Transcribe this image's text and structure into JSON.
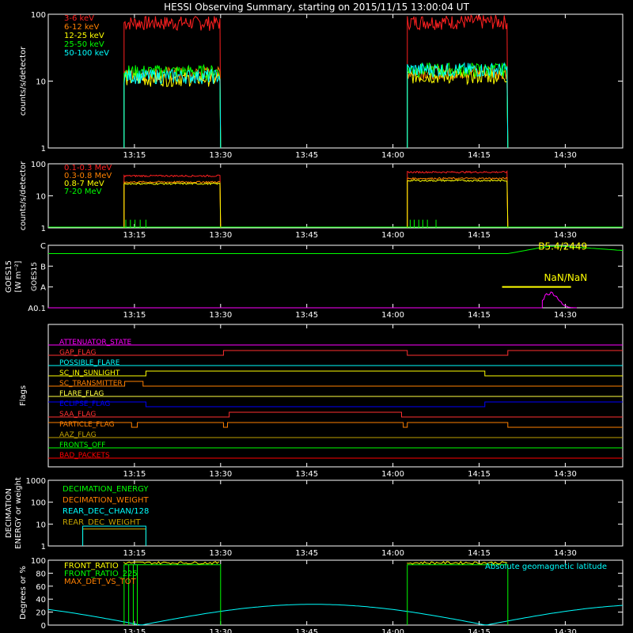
{
  "chart_data": {
    "title": "HESSI Observing Summary, starting on 2015/11/15 13:00:04 UT",
    "type": "line",
    "time_axis": {
      "ticks": [
        {
          "t": 15,
          "label": "13:15"
        },
        {
          "t": 30,
          "label": "13:30"
        },
        {
          "t": 45,
          "label": "13:45"
        },
        {
          "t": 60,
          "label": "14:00"
        },
        {
          "t": 75,
          "label": "14:15"
        },
        {
          "t": 90,
          "label": "14:30"
        }
      ],
      "range_minutes_after_start": [
        0,
        100
      ]
    },
    "panels": [
      {
        "id": "lo",
        "type": "line",
        "ylabel": "counts/s/detector",
        "yscale": "log",
        "ylim": [
          1,
          100
        ],
        "yticks": [
          {
            "v": 1,
            "label": "1"
          },
          {
            "v": 10,
            "label": "10"
          },
          {
            "v": 100,
            "label": "100"
          }
        ],
        "series": [
          {
            "name": "3-6 keV",
            "color": "#ff2020",
            "segments": [
              {
                "from": 13.2,
                "to": 30.0,
                "value": 75
              },
              {
                "from": 62.5,
                "to": 80.0,
                "value": 78
              }
            ]
          },
          {
            "name": "6-12 keV",
            "color": "#ff8000",
            "segments": [
              {
                "from": 13.2,
                "to": 30.0,
                "value": 13
              },
              {
                "from": 62.5,
                "to": 80.0,
                "value": 14
              }
            ]
          },
          {
            "name": "12-25 keV",
            "color": "#ffff00",
            "segments": [
              {
                "from": 13.2,
                "to": 30.0,
                "value": 11
              },
              {
                "from": 62.5,
                "to": 80.0,
                "value": 12
              }
            ]
          },
          {
            "name": "25-50 keV",
            "color": "#00ff00",
            "segments": [
              {
                "from": 13.2,
                "to": 30.0,
                "value": 14
              },
              {
                "from": 62.5,
                "to": 80.0,
                "value": 15
              }
            ]
          },
          {
            "name": "50-100 keV",
            "color": "#00ffff",
            "segments": [
              {
                "from": 13.2,
                "to": 30.0,
                "value": 12
              },
              {
                "from": 62.5,
                "to": 80.0,
                "value": 15
              }
            ]
          }
        ]
      },
      {
        "id": "hi",
        "type": "line",
        "ylabel": "counts/s/detector",
        "yscale": "log",
        "ylim": [
          1,
          100
        ],
        "yticks": [
          {
            "v": 1,
            "label": "1"
          },
          {
            "v": 10,
            "label": "10"
          },
          {
            "v": 100,
            "label": "100"
          }
        ],
        "series": [
          {
            "name": "0.1-0.3 MeV",
            "color": "#ff2020",
            "segments": [
              {
                "from": 13.2,
                "to": 30.0,
                "value": 42
              },
              {
                "from": 62.5,
                "to": 80.0,
                "value": 55
              }
            ]
          },
          {
            "name": "0.3-0.8 MeV",
            "color": "#ff8000",
            "segments": [
              {
                "from": 13.2,
                "to": 30.0,
                "value": 27
              },
              {
                "from": 62.5,
                "to": 80.0,
                "value": 35
              }
            ]
          },
          {
            "name": "0.8-7 MeV",
            "color": "#ffff00",
            "segments": [
              {
                "from": 13.2,
                "to": 30.0,
                "value": 24
              },
              {
                "from": 62.5,
                "to": 80.0,
                "value": 30
              }
            ]
          },
          {
            "name": "7-20 MeV",
            "color": "#00ff00",
            "baseline": 1
          }
        ]
      },
      {
        "id": "goes",
        "type": "line",
        "ylabel": "GOES15",
        "ylabel2": "[W m⁻²]",
        "yticks": [
          {
            "v": 0,
            "label": "A0.1"
          },
          {
            "v": 1,
            "label": "A"
          },
          {
            "v": 2,
            "label": "B"
          },
          {
            "v": 3,
            "label": "C"
          }
        ],
        "ylim": [
          0,
          3
        ],
        "annotations": [
          {
            "text": "B5.4/2449",
            "color": "#ffff00"
          },
          {
            "text": "NaN/NaN",
            "color": "#ffff00"
          }
        ]
      },
      {
        "id": "flags",
        "type": "table",
        "ylabel": "Flags",
        "flags": [
          {
            "name": "ATTENUATOR_STATE",
            "color": "#ff00ff"
          },
          {
            "name": "GAP_FLAG",
            "color": "#ff3030"
          },
          {
            "name": "POSSIBLE_FLARE",
            "color": "#00ffff"
          },
          {
            "name": "SC_IN_SUNLIGHT",
            "color": "#ffff00"
          },
          {
            "name": "SC_TRANSMITTER",
            "color": "#ff8000"
          },
          {
            "name": "FLARE_FLAG",
            "color": "#ffff40"
          },
          {
            "name": "ECLIPSE_FLAG",
            "color": "#0000ff"
          },
          {
            "name": "SAA_FLAG",
            "color": "#ff3030"
          },
          {
            "name": "PARTICLE_FLAG",
            "color": "#ff8000"
          },
          {
            "name": "AAZ_FLAG",
            "color": "#c0a000"
          },
          {
            "name": "FRONTS_OFF",
            "color": "#00ff00"
          },
          {
            "name": "BAD_PACKETS",
            "color": "#ff0000"
          }
        ]
      },
      {
        "id": "dec",
        "type": "line",
        "ylabel": "DECIMATION",
        "ylabel2": "ENERGY or weight",
        "yscale": "log",
        "ylim": [
          1,
          1000
        ],
        "yticks": [
          {
            "v": 1,
            "label": "1"
          },
          {
            "v": 10,
            "label": "10"
          },
          {
            "v": 100,
            "label": "100"
          },
          {
            "v": 1000,
            "label": "1000"
          }
        ],
        "series": [
          {
            "name": "DECIMATION_ENERGY",
            "color": "#00ff00"
          },
          {
            "name": "DECIMATION_WEIGHT",
            "color": "#ff8000"
          },
          {
            "name": "REAR_DEC_CHAN/128",
            "color": "#00ffff"
          },
          {
            "name": "REAR_DEC_WEIGHT",
            "color": "#c0a000"
          }
        ]
      },
      {
        "id": "ratio",
        "type": "line",
        "ylabel": "Degrees or %",
        "ylim": [
          0,
          100
        ],
        "yticks": [
          {
            "v": 0,
            "label": "0"
          },
          {
            "v": 20,
            "label": "20"
          },
          {
            "v": 40,
            "label": "40"
          },
          {
            "v": 60,
            "label": "60"
          },
          {
            "v": 80,
            "label": "80"
          },
          {
            "v": 100,
            "label": "100"
          }
        ],
        "series": [
          {
            "name": "FRONT_RATIO",
            "color": "#ffff00"
          },
          {
            "name": "FRONT_RATIO_225",
            "color": "#00ff00"
          },
          {
            "name": "MAX_DET_VS_TOT",
            "color": "#ff8000"
          },
          {
            "name": "Absolute geomagnetic latitude",
            "color": "#00ffff"
          }
        ]
      }
    ]
  }
}
